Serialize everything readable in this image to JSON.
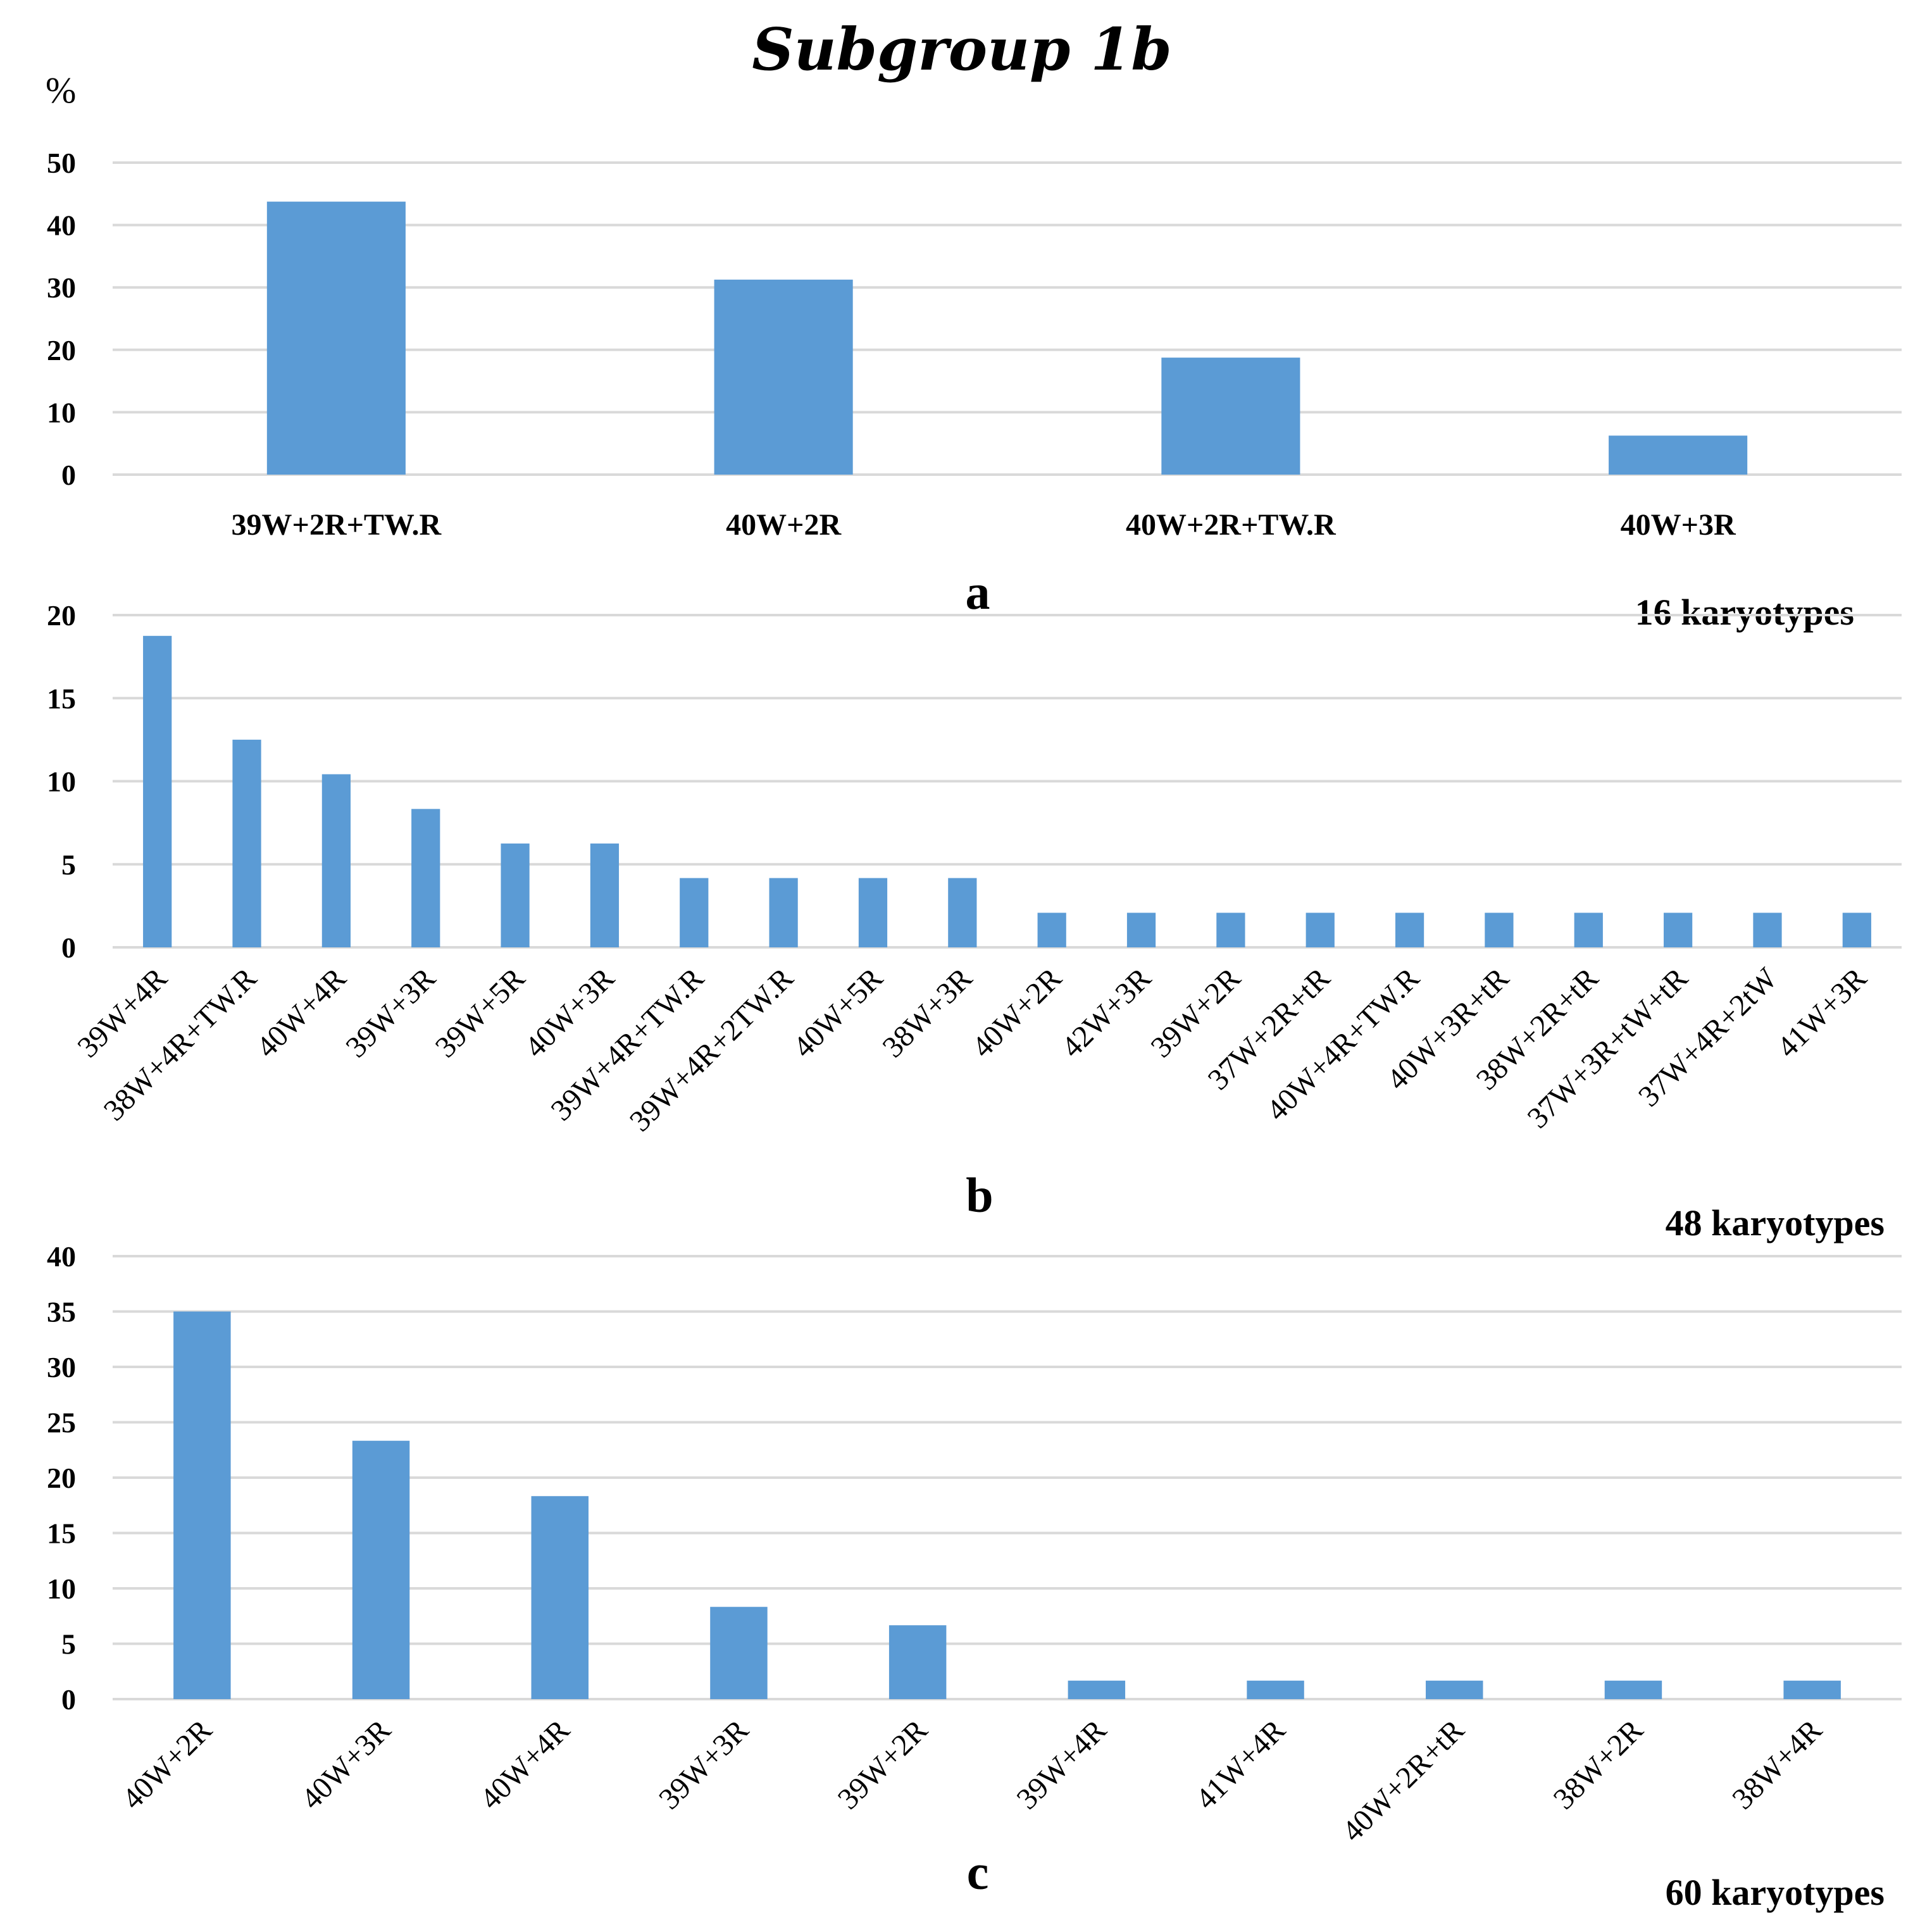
{
  "title": "Subgroup 1b",
  "unit_label": "%",
  "colors": {
    "bar": "#5b9bd5",
    "grid": "#d9d9d9",
    "text": "#000000"
  },
  "chart_data": [
    {
      "type": "bar",
      "panel": "a",
      "note": "16 karyotypes",
      "categories": [
        "39W+2R+TW.R",
        "40W+2R",
        "40W+2R+TW.R",
        "40W+3R"
      ],
      "values": [
        43.75,
        31.25,
        18.75,
        6.25
      ],
      "ylim": [
        0,
        50
      ],
      "yticks": [
        0,
        10,
        20,
        30,
        40,
        50
      ],
      "grid": true
    },
    {
      "type": "bar",
      "panel": "b",
      "note": "48 karyotypes",
      "categories": [
        "39W+4R",
        "38W+4R+TW.R",
        "40W+4R",
        "39W+3R",
        "39W+5R",
        "40W+3R",
        "39W+4R+TW.R",
        "39W+4R+2TW.R",
        "40W+5R",
        "38W+3R",
        "40W+2R",
        "42W+3R",
        "39W+2R",
        "37W+2R+tR",
        "40W+4R+TW.R",
        "40W+3R+tR",
        "38W+2R+tR",
        "37W+3R+tW+tR",
        "37W+4R+2tW",
        "41W+3R"
      ],
      "values": [
        18.75,
        12.5,
        10.42,
        8.33,
        6.25,
        6.25,
        4.17,
        4.17,
        4.17,
        4.17,
        2.08,
        2.08,
        2.08,
        2.08,
        2.08,
        2.08,
        2.08,
        2.08,
        2.08,
        2.08
      ],
      "ylim": [
        0,
        20
      ],
      "yticks": [
        0,
        5,
        10,
        15,
        20
      ],
      "grid": true
    },
    {
      "type": "bar",
      "panel": "c",
      "note": "60 karyotypes",
      "categories": [
        "40W+2R",
        "40W+3R",
        "40W+4R",
        "39W+3R",
        "39W+2R",
        "39W+4R",
        "41W+4R",
        "40W+2R+tR",
        "38W+2R",
        "38W+4R"
      ],
      "values": [
        35.0,
        23.33,
        18.33,
        8.33,
        6.67,
        1.67,
        1.67,
        1.67,
        1.67,
        1.67
      ],
      "ylim": [
        0,
        40
      ],
      "yticks": [
        0,
        5,
        10,
        15,
        20,
        25,
        30,
        35,
        40
      ],
      "grid": true
    }
  ]
}
